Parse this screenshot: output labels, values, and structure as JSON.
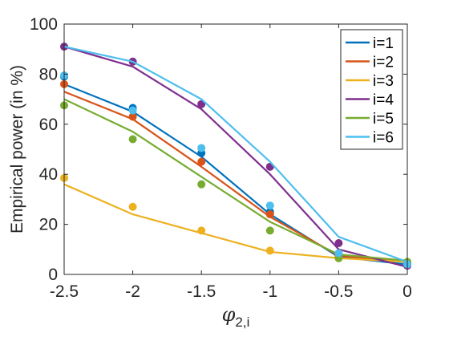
{
  "chart_data": {
    "type": "line",
    "xlabel": "φ",
    "xlabel_sub": "2,i",
    "ylabel": "Empirical power (in %)",
    "xlim": [
      -2.5,
      0
    ],
    "ylim": [
      0,
      100
    ],
    "xticks": [
      "-2.5",
      "-2",
      "-1.5",
      "-1",
      "-0.5",
      "0"
    ],
    "yticks": [
      "0",
      "20",
      "40",
      "60",
      "80",
      "100"
    ],
    "x": [
      -2.5,
      -2,
      -1.5,
      -1,
      -0.5,
      0
    ],
    "legend_position": "top-right",
    "grid": false,
    "series": [
      {
        "name": "i=1",
        "color": "#0072BD",
        "line": [
          76,
          65,
          47,
          24,
          7,
          4
        ],
        "points": [
          79,
          66.5,
          48.5,
          25,
          7.5,
          4
        ]
      },
      {
        "name": "i=2",
        "color": "#D95319",
        "line": [
          73,
          62,
          43,
          23,
          7.5,
          5
        ],
        "points": [
          76,
          63,
          45,
          24,
          7.5,
          4.5
        ]
      },
      {
        "name": "i=3",
        "color": "#EDB120",
        "line": [
          36,
          24,
          16.5,
          9,
          6.5,
          5
        ],
        "points": [
          38.5,
          27,
          17.5,
          9.5,
          6.5,
          5
        ]
      },
      {
        "name": "i=4",
        "color": "#7E2F8E",
        "line": [
          91,
          83,
          66,
          40,
          10,
          3
        ],
        "points": [
          91,
          85,
          68,
          43,
          12.5,
          3.5
        ]
      },
      {
        "name": "i=5",
        "color": "#77AC30",
        "line": [
          70,
          57,
          39,
          21,
          8,
          5.5
        ],
        "points": [
          67.5,
          54,
          36,
          17.5,
          6.5,
          5
        ]
      },
      {
        "name": "i=6",
        "color": "#4DBEEE",
        "line": [
          91,
          85,
          70,
          45,
          15,
          5
        ],
        "points": [
          79.5,
          65.5,
          50.5,
          27.5,
          8.5,
          4
        ]
      }
    ]
  }
}
